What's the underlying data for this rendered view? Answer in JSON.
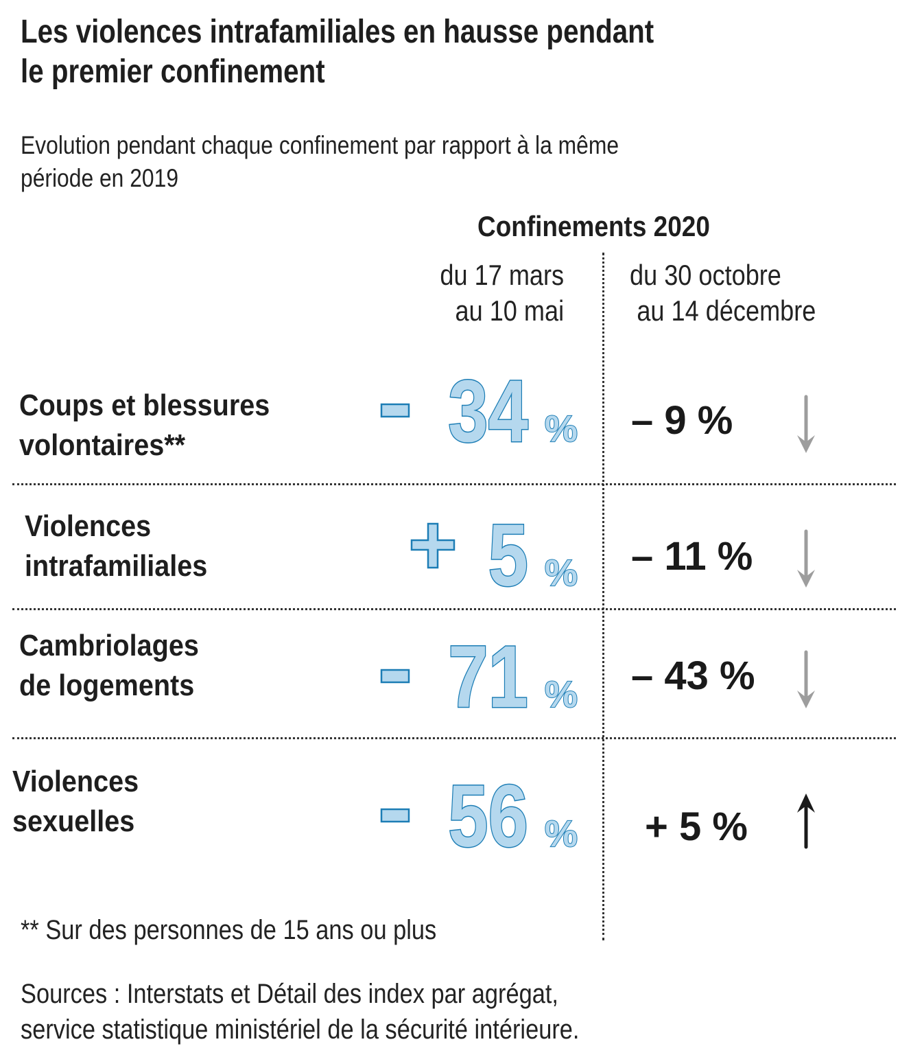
{
  "header": {
    "title_line1": "Les violences intrafamiliales en hausse pendant",
    "title_line2": "le premier confinement",
    "subtitle_line1": "Evolution pendant chaque confinement par rapport à la même",
    "subtitle_line2": "période en 2019"
  },
  "columns": {
    "group_title": "Confinements 2020",
    "period1_line1": "du 17 mars",
    "period1_line2": "au 10 mai",
    "period2_line1": "du 30 octobre",
    "period2_line2": "au 14 décembre"
  },
  "colors": {
    "blue_fill": "#b5d8ee",
    "blue_stroke": "#1c7db5",
    "down_arrow": "#9d9d9d",
    "up_arrow": "#1a1a1a",
    "text": "#1e1e1e"
  },
  "rows": [
    {
      "label_line1": "Coups et blessures",
      "label_line2": "volontaires**",
      "first_sign": "-",
      "first_value": "34",
      "first_unit": "%",
      "second_text": "– 9 %",
      "trend": "down"
    },
    {
      "label_line1": "Violences",
      "label_line2": "intrafamiliales",
      "first_sign": "+",
      "first_value": "5",
      "first_unit": "%",
      "second_text": "– 11 %",
      "trend": "down"
    },
    {
      "label_line1": "Cambriolages",
      "label_line2": "de logements",
      "first_sign": "-",
      "first_value": "71",
      "first_unit": "%",
      "second_text": "– 43 %",
      "trend": "down"
    },
    {
      "label_line1": "Violences",
      "label_line2": "sexuelles",
      "first_sign": "-",
      "first_value": "56",
      "first_unit": "%",
      "second_text": "+ 5 %",
      "trend": "up"
    }
  ],
  "footnote": "** Sur des personnes de 15 ans ou plus",
  "sources_line1": "Sources : Interstats et Détail des index par agrégat,",
  "sources_line2": "service statistique ministériel de la sécurité intérieure.",
  "chart_data": {
    "type": "table",
    "title": "Les violences intrafamiliales en hausse pendant le premier confinement",
    "subtitle": "Evolution pendant chaque confinement par rapport à la même période en 2019",
    "column_group": "Confinements 2020",
    "columns": [
      "du 17 mars au 10 mai",
      "du 30 octobre au 14 décembre"
    ],
    "categories": [
      "Coups et blessures volontaires**",
      "Violences intrafamiliales",
      "Cambriolages de logements",
      "Violences sexuelles"
    ],
    "series": [
      {
        "name": "du 17 mars au 10 mai",
        "values": [
          -34,
          5,
          -71,
          -56
        ],
        "unit": "%"
      },
      {
        "name": "du 30 octobre au 14 décembre",
        "values": [
          -9,
          -11,
          -43,
          5
        ],
        "unit": "%"
      }
    ],
    "trend_arrows": [
      "down",
      "down",
      "down",
      "up"
    ],
    "footnote": "** Sur des personnes de 15 ans ou plus",
    "source": "Interstats et Détail des index par agrégat, service statistique ministériel de la sécurité intérieure."
  }
}
